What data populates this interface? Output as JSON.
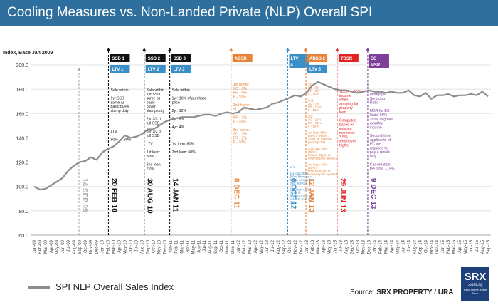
{
  "title": "Cooling Measures vs. Non-Landed Private (NLP) Overall SPI",
  "legend_label": "SPI NLP Overall Sales Index",
  "source_prefix": "Source: ",
  "source_name": "SRX PROPERTY / URA",
  "logo": {
    "main": "SRX",
    "domain": ".com.sg",
    "tagline": "Right Home. Right Price."
  },
  "colors": {
    "title_bg": "#2f6f9d",
    "line": "#8c8c8c",
    "grid": "#d9d9d9"
  },
  "chart_data": {
    "type": "line",
    "title": "Cooling Measures vs. Non-Landed Private (NLP) Overall SPI",
    "ylabel": "Index, Base Jan 2009",
    "xlabel": "",
    "ylim": [
      60,
      200
    ],
    "yticks": [
      60.0,
      80.0,
      100.0,
      120.0,
      140.0,
      160.0,
      180.0,
      200.0
    ],
    "x": [
      "Jan-09",
      "Feb-09",
      "Mar-09",
      "Apr-09",
      "May-09",
      "Jun-09",
      "Jul-09",
      "Aug-09",
      "Sep-09",
      "Oct-09",
      "Nov-09",
      "Dec-09",
      "Jan-10",
      "Feb-10",
      "Mar-10",
      "Apr-10",
      "May-10",
      "Jun-10",
      "Jul-10",
      "Aug-10",
      "Sep-10",
      "Oct-10",
      "Nov-10",
      "Dec-10",
      "Jan-11",
      "Feb-11",
      "Mar-11",
      "Apr-11",
      "May-11",
      "Jun-11",
      "Jul-11",
      "Aug-11",
      "Sep-11",
      "Oct-11",
      "Nov-11",
      "Dec-11",
      "Jan-12",
      "Feb-12",
      "Mar-12",
      "Apr-12",
      "May-12",
      "Jun-12",
      "Jul-12",
      "Aug-12",
      "Sep-12",
      "Oct-12",
      "Nov-12",
      "Dec-12",
      "Jan-13",
      "Feb-13",
      "Mar-13",
      "Apr-13",
      "May-13",
      "Jun-13",
      "Jul-13",
      "Aug-13",
      "Sep-13",
      "Oct-13",
      "Nov-13",
      "Dec-13",
      "Jan-14",
      "Feb-14",
      "Mar-14",
      "Apr-14",
      "May-14",
      "Jun-14",
      "Jul-14",
      "Aug-14",
      "Sep-14",
      "Oct-14",
      "Nov-14",
      "Dec-14",
      "Jan-15",
      "Feb-15",
      "Mar-15",
      "Apr-15",
      "May-15",
      "Jun-15",
      "Jul-15",
      "Aug-15",
      "Sep-15"
    ],
    "series": [
      {
        "name": "SPI NLP Overall Sales Index",
        "values": [
          100,
          97.5,
          98,
          101,
          104,
          107,
          113,
          117,
          120,
          121,
          124,
          122,
          128,
          131,
          133,
          137,
          142,
          140,
          141,
          143,
          147,
          147,
          150,
          153,
          155,
          156,
          157,
          157,
          157,
          158,
          159,
          159,
          158,
          160,
          161,
          160,
          161,
          165,
          164,
          163,
          164,
          165,
          168,
          169,
          171,
          173,
          175,
          174,
          177,
          183,
          186,
          184,
          182,
          180,
          179,
          179,
          178,
          177,
          178,
          179,
          178,
          178,
          177,
          178,
          177,
          177,
          179,
          175,
          174,
          177,
          172,
          175,
          175,
          176,
          174,
          175,
          175,
          176,
          175,
          178,
          174
        ]
      }
    ],
    "events": [
      {
        "label": "SSD 1",
        "sub": "LTV 1",
        "date": "20 FEB 10",
        "color": "#111111",
        "x_index": 13.6,
        "text": [
          "Sale within",
          "",
          "1yr:SSD",
          "same as",
          "basic buyer",
          "stamp duty",
          "",
          "",
          "",
          "",
          "LTV",
          "",
          "90% → 80%"
        ]
      },
      {
        "label": "SSD 2",
        "sub": "LTV 2",
        "date": "30 AUG 10",
        "color": "#111111",
        "x_index": 19.9,
        "text": [
          "Sale within",
          "1yr:SSD",
          "same as",
          "basic",
          "buyer",
          "stamp duty",
          "",
          "2yr:2/3 of",
          "full SSD",
          "",
          "3yr:1/3 of",
          "full SSD",
          "",
          "LTV",
          "",
          "1st loan:",
          "80%",
          "",
          "2nd loan:",
          "70%"
        ]
      },
      {
        "label": "SSD 3",
        "sub": "LTV 3",
        "date": "14 JAN 11",
        "color": "#111111",
        "x_index": 24.4,
        "text": [
          "Sale within",
          "",
          "1yr: 16% of purchase",
          "price",
          "",
          "2yr: 12%",
          "",
          "3yr: 8%",
          "",
          "4yr: 4%",
          "",
          "",
          "",
          "1st loan: 80%",
          "",
          "2nd loan: 60%"
        ]
      },
      {
        "label": "ABSD",
        "date": "8 DEC 11",
        "color": "#e8843a",
        "x_index": 35.2,
        "text": [
          "1st home:",
          "SC - 0%",
          "PR - 0%",
          "F - 10%",
          "",
          "2nd home:",
          "SC - 0%",
          "",
          "PR - 3%",
          "F - 10%",
          "",
          "3rd home:",
          "SC - 3%",
          "PR - 3%",
          "F - 10%"
        ]
      },
      {
        "label": "LTV 4",
        "date": "6 OCT 12",
        "color": "#3a8fc9",
        "x_index": 45.2,
        "text": [
          "LTV",
          "",
          "1st loan: 80%",
          "(60% if tenure >",
          "30yrs, or extends",
          "past age 65)",
          "",
          "2nd loan: 60%",
          "(40% if",
          "tenure>30yrs, or",
          "extends past age",
          "65)"
        ]
      },
      {
        "label": "ABSD 2",
        "sub": "LTV 5",
        "date": "12 JAN 13",
        "color": "#e8843a",
        "x_index": 48.4,
        "text": [
          "1st:",
          "SC - 0%",
          "PR - 5%",
          "F - 15%",
          "",
          "2nd:",
          "SC - 7%",
          "PR - 10%",
          "F - 15%",
          "",
          "3rd:",
          "SC - 10%",
          "PR - 10%",
          "F - 15%",
          "",
          "1st loan: 80%",
          "(60% if tenure >",
          "30yrs, or extends",
          "past age 65)",
          "",
          "2nd loan: 50%",
          "(40% if",
          "tenure>30yrs, or",
          "extends past age 65)",
          "",
          "3rd loan: 40%",
          "(20% if",
          "tenure>30yrs, or",
          "extends past age 65)"
        ]
      },
      {
        "label": "TDSR",
        "date": "29 JUN 13",
        "color": "#e02424",
        "x_index": 53.9,
        "text": [
          "TDSR<=60%",
          "income",
          "when",
          "applying for",
          "property",
          "loan",
          "",
          "Computed",
          "based on",
          "existing",
          "market or",
          "3.5%",
          "whichever",
          "higher"
        ]
      },
      {
        "label": "EC MSR",
        "date": "9 DEC 13",
        "color": "#7e3f98",
        "x_index": 59.3,
        "text": [
          "Mortgage",
          "Servicing",
          "Ratio",
          "",
          "MSR for EC",
          "loans 60%",
          "-30% of gross",
          "monthly",
          "income",
          "",
          "Second-timer",
          "applicants of",
          "EC are",
          "required to",
          "pay a resale",
          "levy",
          "",
          "Cancellation",
          "fee 20% → 5%"
        ]
      },
      {
        "label": "",
        "date": "14 SEP 09",
        "color": "#aaaaaa",
        "x_index": 8.4,
        "text": []
      }
    ]
  }
}
